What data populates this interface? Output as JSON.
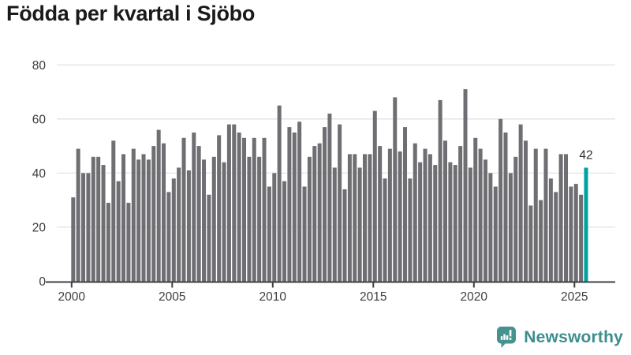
{
  "title": "Födda per kvartal i Sjöbo",
  "chart_data": {
    "type": "bar",
    "title": "Födda per kvartal i Sjöbo",
    "x_start": "2000-Q1",
    "x_end": "2025-Q3",
    "values": [
      31,
      49,
      40,
      40,
      46,
      46,
      43,
      29,
      52,
      37,
      47,
      29,
      49,
      45,
      47,
      45,
      50,
      56,
      51,
      33,
      38,
      42,
      53,
      41,
      55,
      50,
      45,
      32,
      46,
      54,
      44,
      58,
      58,
      55,
      53,
      46,
      53,
      46,
      53,
      35,
      40,
      65,
      37,
      57,
      55,
      59,
      35,
      46,
      50,
      51,
      57,
      62,
      42,
      58,
      34,
      47,
      47,
      42,
      47,
      47,
      63,
      50,
      38,
      49,
      68,
      48,
      57,
      38,
      51,
      44,
      49,
      47,
      43,
      67,
      52,
      44,
      43,
      50,
      71,
      42,
      53,
      49,
      45,
      40,
      35,
      60,
      55,
      40,
      46,
      58,
      52,
      28,
      49,
      30,
      49,
      38,
      33,
      47,
      47,
      35,
      36,
      32,
      42
    ],
    "highlight_last": {
      "value": 42,
      "label": "42"
    },
    "x_tick_labels": [
      "2000",
      "2005",
      "2010",
      "2015",
      "2020",
      "2025"
    ],
    "x_tick_bar_indices": [
      0,
      20,
      40,
      60,
      80,
      100
    ],
    "y_ticks": [
      0,
      20,
      40,
      60,
      80
    ],
    "ylim": [
      0,
      80
    ],
    "grid": "horizontal",
    "legend": "none",
    "bar_color": "#6E6E73",
    "highlight_color": "#00A1A1",
    "grid_color": "#E3E3E3",
    "axis_color": "#404040",
    "tick_label_color": "#3D3D3D",
    "annotation_color": "#2B2B2B"
  },
  "logo": {
    "text": "Newsworthy",
    "icon": "bar-chart-speech-bubble",
    "icon_color": "#45928F",
    "text_color": "#3C8E8D"
  }
}
